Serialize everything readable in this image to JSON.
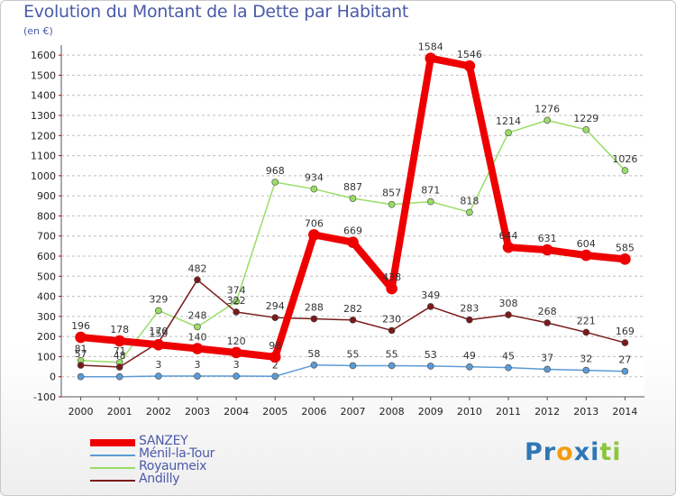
{
  "chart_data": {
    "type": "line",
    "title": "Evolution du Montant de la Dette par Habitant",
    "subtitle": "(en €)",
    "x": [
      "2000",
      "2001",
      "2002",
      "2003",
      "2004",
      "2005",
      "2006",
      "2007",
      "2008",
      "2009",
      "2010",
      "2011",
      "2012",
      "2013",
      "2014"
    ],
    "y_ticks": [
      -100,
      0,
      100,
      200,
      300,
      400,
      500,
      600,
      700,
      800,
      900,
      1000,
      1100,
      1200,
      1300,
      1400,
      1500,
      1600
    ],
    "ylim": [
      -100,
      1650
    ],
    "grid": "horizontal dashed",
    "legend_placement": "bottom-left",
    "series": [
      {
        "name": "SANZEY",
        "color": "#ee0000",
        "emphasis": true,
        "values": [
          196,
          178,
          159,
          140,
          120,
          98,
          706,
          669,
          438,
          1584,
          1546,
          644,
          631,
          604,
          585
        ]
      },
      {
        "name": "Ménil-la-Tour",
        "color": "#5b9bd5",
        "values": [
          0,
          0,
          3,
          3,
          3,
          2,
          58,
          55,
          55,
          53,
          49,
          45,
          37,
          32,
          27
        ]
      },
      {
        "name": "Royaumeix",
        "color": "#99dd66",
        "values": [
          81,
          71,
          329,
          248,
          374,
          968,
          934,
          887,
          857,
          871,
          818,
          1214,
          1276,
          1229,
          1026
        ]
      },
      {
        "name": "Andilly",
        "color": "#7a1a1a",
        "values": [
          57,
          48,
          170,
          482,
          322,
          294,
          288,
          282,
          230,
          349,
          283,
          308,
          268,
          221,
          169
        ]
      }
    ]
  },
  "brand": {
    "letters": [
      "P",
      "r",
      "o",
      "x",
      "i",
      "t",
      "i"
    ],
    "colors": [
      "#2f77b5",
      "#2f77b5",
      "#f39c12",
      "#2f77b5",
      "#2f77b5",
      "#8cc63f",
      "#8cc63f"
    ]
  }
}
